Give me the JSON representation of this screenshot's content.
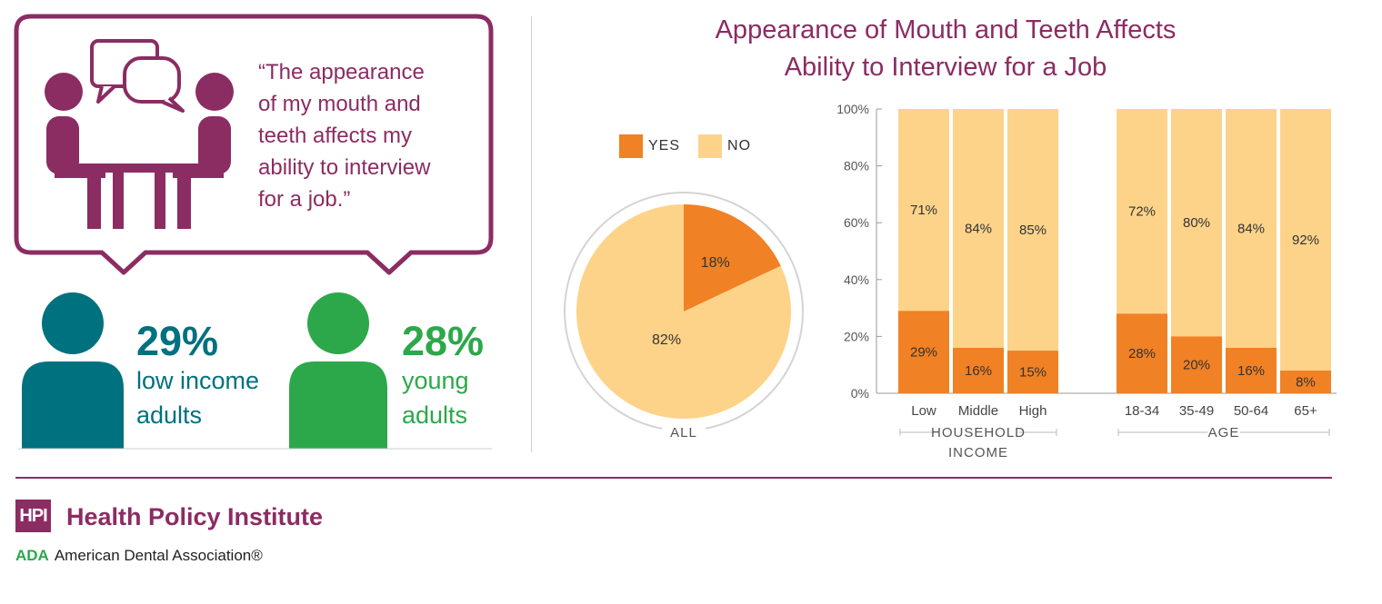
{
  "quote": {
    "lines": [
      "“The appearance",
      "of my mouth and",
      "teeth affects my",
      "ability to interview",
      "for a job.”"
    ]
  },
  "stats": [
    {
      "value": "29%",
      "line1": "low income",
      "line2": "adults",
      "color": "#00717f"
    },
    {
      "value": "28%",
      "line1": "young",
      "line2": "adults",
      "color": "#2ca84a"
    }
  ],
  "header": {
    "title_line1": "Appearance of Mouth and Teeth Affects",
    "title_line2": "Ability to Interview for a Job"
  },
  "legend": [
    {
      "label": "YES",
      "color": "#f08124"
    },
    {
      "label": "NO",
      "color": "#fdd38a"
    }
  ],
  "footer": {
    "badge": "HPI",
    "institute": "Health Policy Institute",
    "ada_mark": "ADA",
    "ada_name": "American Dental Association®"
  },
  "chart_data": [
    {
      "type": "pie",
      "label": "ALL",
      "slices": [
        {
          "name": "YES",
          "value": 18,
          "label": "18%",
          "color": "#f08124"
        },
        {
          "name": "NO",
          "value": 82,
          "label": "82%",
          "color": "#fdd38a"
        }
      ]
    },
    {
      "type": "bar",
      "stacked": true,
      "yticks": [
        "0%",
        "20%",
        "40%",
        "60%",
        "80%",
        "100%"
      ],
      "ylim": [
        0,
        100
      ],
      "groups": [
        {
          "label_lines": [
            "HOUSEHOLD",
            "INCOME"
          ],
          "bars": [
            {
              "category": "Low",
              "yes": 29,
              "no": 71,
              "yes_label": "29%",
              "no_label": "71%"
            },
            {
              "category": "Middle",
              "yes": 16,
              "no": 84,
              "yes_label": "16%",
              "no_label": "84%"
            },
            {
              "category": "High",
              "yes": 15,
              "no": 85,
              "yes_label": "15%",
              "no_label": "85%"
            }
          ]
        },
        {
          "label_lines": [
            "AGE"
          ],
          "bars": [
            {
              "category": "18-34",
              "yes": 28,
              "no": 72,
              "yes_label": "28%",
              "no_label": "72%"
            },
            {
              "category": "35-49",
              "yes": 20,
              "no": 80,
              "yes_label": "20%",
              "no_label": "80%"
            },
            {
              "category": "50-64",
              "yes": 16,
              "no": 84,
              "yes_label": "16%",
              "no_label": "84%"
            },
            {
              "category": "65+",
              "yes": 8,
              "no": 92,
              "yes_label": "8%",
              "no_label": "92%"
            }
          ]
        }
      ],
      "colors": {
        "yes": "#f08124",
        "no": "#fdd38a"
      }
    }
  ]
}
